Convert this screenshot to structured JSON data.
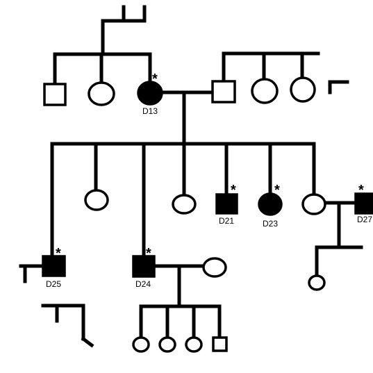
{
  "pedigree": {
    "asterisk": "*",
    "individuals": [
      {
        "key": "g1_m1",
        "sex": "male",
        "affected": false
      },
      {
        "key": "g1_f1",
        "sex": "female",
        "affected": false
      },
      {
        "key": "d13",
        "sex": "female",
        "affected": true,
        "label": "D13",
        "marked": true
      },
      {
        "key": "g1_spouse",
        "sex": "male",
        "affected": false
      },
      {
        "key": "g1_f2",
        "sex": "female",
        "affected": false
      },
      {
        "key": "g1_f3",
        "sex": "female",
        "affected": false
      },
      {
        "key": "g2_f1",
        "sex": "female",
        "affected": false
      },
      {
        "key": "g2_f2",
        "sex": "female",
        "affected": false
      },
      {
        "key": "d21",
        "sex": "male",
        "affected": true,
        "label": "D21",
        "marked": true
      },
      {
        "key": "d23",
        "sex": "female",
        "affected": true,
        "label": "D23",
        "marked": true
      },
      {
        "key": "g2_f3",
        "sex": "female",
        "affected": false
      },
      {
        "key": "d27",
        "sex": "male",
        "affected": true,
        "label": "D27",
        "marked": true
      },
      {
        "key": "d25",
        "sex": "male",
        "affected": true,
        "label": "D25",
        "marked": true
      },
      {
        "key": "d24",
        "sex": "male",
        "affected": true,
        "label": "D24",
        "marked": true
      },
      {
        "key": "g3_spouse",
        "sex": "female",
        "affected": false
      },
      {
        "key": "g3_child_right",
        "sex": "female",
        "affected": false
      },
      {
        "key": "g4_f1",
        "sex": "female",
        "affected": false
      },
      {
        "key": "g4_f2",
        "sex": "female",
        "affected": false
      },
      {
        "key": "g4_f3",
        "sex": "female",
        "affected": false
      },
      {
        "key": "g4_m1",
        "sex": "male",
        "affected": false
      }
    ]
  }
}
